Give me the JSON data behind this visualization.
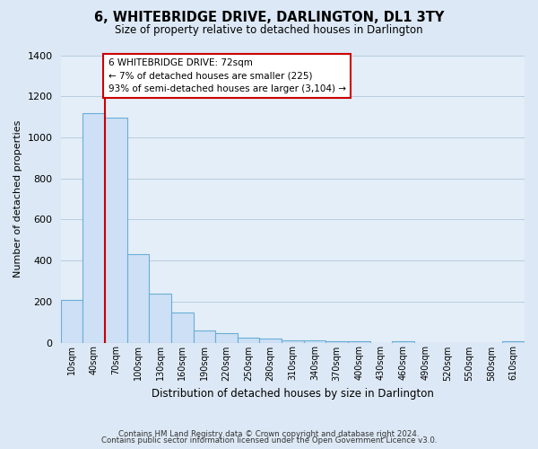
{
  "title": "6, WHITEBRIDGE DRIVE, DARLINGTON, DL1 3TY",
  "subtitle": "Size of property relative to detached houses in Darlington",
  "xlabel": "Distribution of detached houses by size in Darlington",
  "ylabel": "Number of detached properties",
  "footnote1": "Contains HM Land Registry data © Crown copyright and database right 2024.",
  "footnote2": "Contains public sector information licensed under the Open Government Licence v3.0.",
  "bar_labels": [
    "10sqm",
    "40sqm",
    "70sqm",
    "100sqm",
    "130sqm",
    "160sqm",
    "190sqm",
    "220sqm",
    "250sqm",
    "280sqm",
    "310sqm",
    "340sqm",
    "370sqm",
    "400sqm",
    "430sqm",
    "460sqm",
    "490sqm",
    "520sqm",
    "550sqm",
    "580sqm",
    "610sqm"
  ],
  "bar_values": [
    210,
    1120,
    1095,
    430,
    240,
    145,
    60,
    48,
    25,
    18,
    10,
    10,
    8,
    8,
    0,
    8,
    0,
    0,
    0,
    0,
    5
  ],
  "bar_color": "#cde0f5",
  "bar_edge_color": "#6aaed6",
  "ylim": [
    0,
    1400
  ],
  "yticks": [
    0,
    200,
    400,
    600,
    800,
    1000,
    1200,
    1400
  ],
  "marker_label": "6 WHITEBRIDGE DRIVE: 72sqm",
  "annotation_line1": "← 7% of detached houses are smaller (225)",
  "annotation_line2": "93% of semi-detached houses are larger (3,104) →",
  "annotation_box_color": "#ffffff",
  "annotation_box_edge_color": "#cc0000",
  "marker_line_color": "#cc0000",
  "bg_color": "#dce8f5",
  "plot_bg_color": "#e4eef8",
  "grid_color": "#b8ccde"
}
